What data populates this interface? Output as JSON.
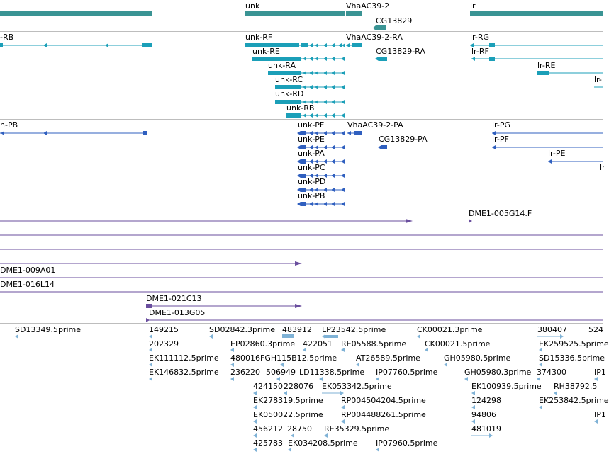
{
  "colors": {
    "gene": "#3a9494",
    "transcript_track1": "#1b9fb8",
    "transcript_track2": "#2f5fbf",
    "clone": "#6a4e9e",
    "est": "#7fb2d6",
    "separator": "#bdbdbd"
  },
  "tracks": {
    "genes": {
      "labels": [
        "unk",
        "VhaAC39-2",
        "CG13829",
        "lr"
      ]
    },
    "transcripts_a": {
      "labels": [
        "-RB",
        "unk-RF",
        "VhaAC39-2-RA",
        "lr-RG",
        "unk-RE",
        "CG13829-RA",
        "lr-RF",
        "unk-RA",
        "lr-RE",
        "unk-RC",
        "lr-",
        "unk-RD",
        "unk-RB"
      ]
    },
    "transcripts_b": {
      "labels": [
        "n-PB",
        "unk-PF",
        "VhaAC39-2-PA",
        "lr-PG",
        "unk-PE",
        "CG13829-PA",
        "lr-PF",
        "unk-PA",
        "lr-PE",
        "unk-PC",
        "lr",
        "unk-PD",
        "unk-PB"
      ]
    },
    "clones": {
      "labels": [
        "DME1-005G14.F",
        "DME1-009A01",
        "DME1-016L14",
        "DME1-021C13",
        "DME1-013G05"
      ]
    },
    "ests": {
      "labels": [
        "SD13349.5prime",
        "149215",
        "SD02842.3prime",
        "483912",
        "LP23542.5prime",
        "CK00021.3prime",
        "380407",
        "524",
        "202329",
        "EP02860.3prime",
        "422051",
        "RE05588.5prime",
        "CK00021.5prime",
        "EK259525.5prime",
        "EK111112.5prime",
        "480016",
        "FGH115B12.5prime",
        "AT26589.5prime",
        "GH05980.5prime",
        "SD15336.5prime",
        "EK146832.5prime",
        "236220",
        "506949",
        "LD11338.5prime",
        "IP07760.5prime",
        "GH05980.3prime",
        "374300",
        "IP1",
        "424150",
        "228076",
        "EK053342.5prime",
        "EK100939.5prime",
        "RH38792.5",
        "EK278319.5prime",
        "RP004504204.5prime",
        "124298",
        "EK253842.5prime",
        "EK050022.5prime",
        "RP004488261.5prime",
        "94806",
        "IP1",
        "456212",
        "28750",
        "RE35329.5prime",
        "481019",
        "425783",
        "EK034208.5prime",
        "IP07960.5prime"
      ]
    }
  }
}
